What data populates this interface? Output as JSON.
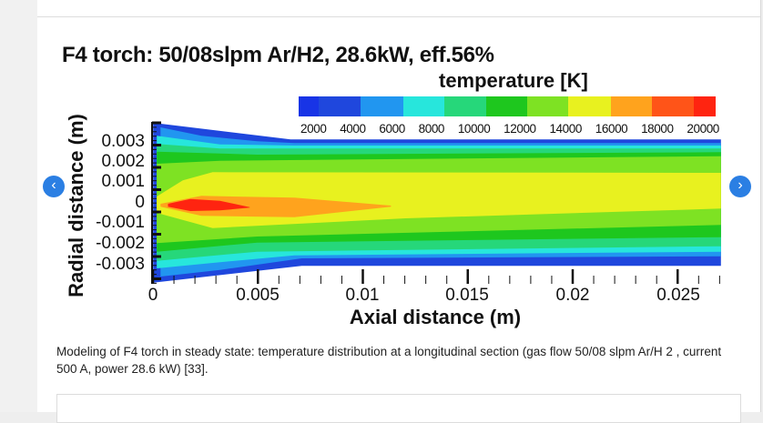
{
  "figure": {
    "title": "F4 torch: 50/08slpm Ar/H2, 28.6kW, eff.56%",
    "colorbar_title": "temperature [K]",
    "colorbar_ticks": [
      "2000",
      "4000",
      "6000",
      "8000",
      "10000",
      "12000",
      "14000",
      "16000",
      "18000",
      "20000"
    ],
    "colorbar_colors": [
      "#1834e6",
      "#1f47dd",
      "#2196f0",
      "#27e6dc",
      "#26d77a",
      "#1ec71e",
      "#7ee223",
      "#e8f11f",
      "#ffa31d",
      "#ff5418",
      "#ff2410"
    ],
    "ylabel": "Radial distance (m)",
    "xlabel": "Axial distance (m)",
    "yticks": [
      "0.003",
      "0.002",
      "0.001",
      "0",
      "-0.001",
      "-0.002",
      "-0.003"
    ],
    "xticks": [
      "0",
      "0.005",
      "0.01",
      "0.015",
      "0.02",
      "0.025"
    ]
  },
  "chart_data": {
    "type": "heatmap",
    "title": "F4 torch: 50/08slpm Ar/H2, 28.6kW, eff.56%",
    "xlabel": "Axial distance (m)",
    "ylabel": "Radial distance (m)",
    "xlim": [
      0,
      0.027
    ],
    "ylim": [
      -0.0039,
      0.0039
    ],
    "colorbar": {
      "label": "temperature [K]",
      "levels": [
        2000,
        4000,
        6000,
        8000,
        10000,
        12000,
        14000,
        16000,
        18000,
        20000
      ]
    },
    "max_temperature_region": "18000-20000+ K core near axis at x 0.0005-0.005 m"
  },
  "nav": {
    "prev_label": "‹",
    "next_label": "›",
    "prev_icon": "chevron-left-icon",
    "next_icon": "chevron-right-icon",
    "accent": "#2b7fe3"
  },
  "caption": "Modeling of F4 torch in steady state: temperature distribution at a longitudinal section (gas flow 50/08 slpm Ar/H 2 , current 500 A, power 28.6 kW) [33]."
}
